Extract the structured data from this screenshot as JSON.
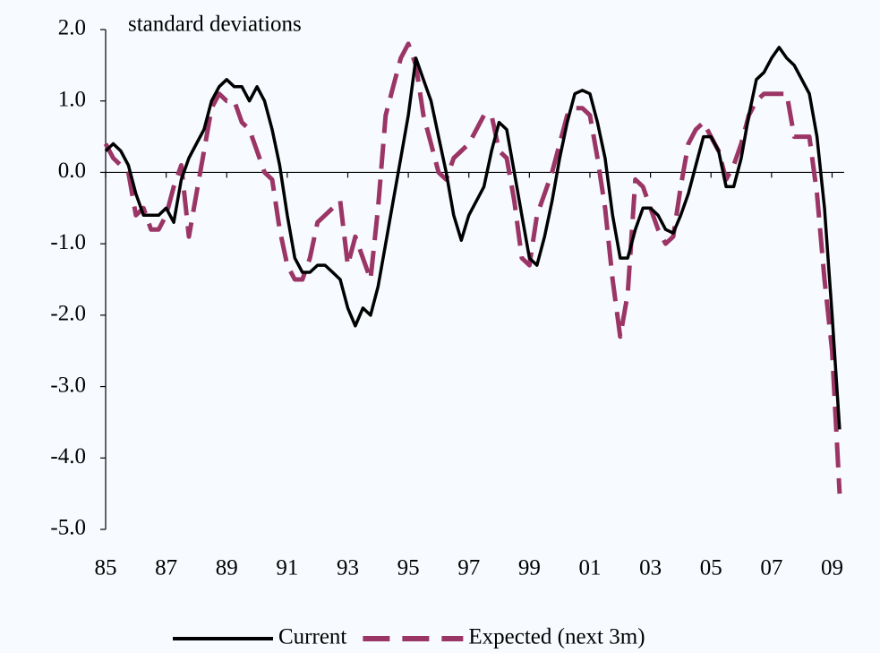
{
  "chart_data": {
    "type": "line",
    "y_label": "standard deviations",
    "x": [
      1985,
      1985.25,
      1985.5,
      1985.75,
      1986,
      1986.25,
      1986.5,
      1986.75,
      1987,
      1987.25,
      1987.5,
      1987.75,
      1988,
      1988.25,
      1988.5,
      1988.75,
      1989,
      1989.25,
      1989.5,
      1989.75,
      1990,
      1990.25,
      1990.5,
      1990.75,
      1991,
      1991.25,
      1991.5,
      1991.75,
      1992,
      1992.25,
      1992.5,
      1992.75,
      1993,
      1993.25,
      1993.5,
      1993.75,
      1994,
      1994.25,
      1994.5,
      1994.75,
      1995,
      1995.25,
      1995.5,
      1995.75,
      1996,
      1996.25,
      1996.5,
      1996.75,
      1997,
      1997.25,
      1997.5,
      1997.75,
      1998,
      1998.25,
      1998.5,
      1998.75,
      1999,
      1999.25,
      1999.5,
      1999.75,
      2000,
      2000.25,
      2000.5,
      2000.75,
      2001,
      2001.25,
      2001.5,
      2001.75,
      2002,
      2002.25,
      2002.5,
      2002.75,
      2003,
      2003.25,
      2003.5,
      2003.75,
      2004,
      2004.25,
      2004.5,
      2004.75,
      2005,
      2005.25,
      2005.5,
      2005.75,
      2006,
      2006.25,
      2006.5,
      2006.75,
      2007,
      2007.25,
      2007.5,
      2007.75,
      2008,
      2008.25,
      2008.5,
      2008.75,
      2009,
      2009.25
    ],
    "series": [
      {
        "name": "Current",
        "color": "#000000",
        "dashed": false,
        "values": [
          0.3,
          0.4,
          0.3,
          0.1,
          -0.3,
          -0.6,
          -0.6,
          -0.6,
          -0.5,
          -0.7,
          -0.1,
          0.2,
          0.4,
          0.6,
          1.0,
          1.2,
          1.3,
          1.2,
          1.2,
          1.0,
          1.2,
          1.0,
          0.6,
          0.1,
          -0.6,
          -1.2,
          -1.4,
          -1.4,
          -1.3,
          -1.3,
          -1.4,
          -1.5,
          -1.9,
          -2.15,
          -1.9,
          -2.0,
          -1.6,
          -1.0,
          -0.4,
          0.2,
          0.8,
          1.6,
          1.3,
          1.0,
          0.5,
          0.0,
          -0.6,
          -0.95,
          -0.6,
          -0.4,
          -0.2,
          0.3,
          0.7,
          0.6,
          0.0,
          -0.6,
          -1.2,
          -1.3,
          -0.9,
          -0.4,
          0.2,
          0.7,
          1.1,
          1.15,
          1.1,
          0.7,
          0.2,
          -0.6,
          -1.2,
          -1.2,
          -0.8,
          -0.5,
          -0.5,
          -0.6,
          -0.8,
          -0.85,
          -0.6,
          -0.3,
          0.1,
          0.5,
          0.5,
          0.3,
          -0.2,
          -0.2,
          0.2,
          0.8,
          1.3,
          1.4,
          1.6,
          1.75,
          1.6,
          1.5,
          1.3,
          1.1,
          0.5,
          -0.5,
          -2.0,
          -3.6
        ]
      },
      {
        "name": "Expected (next 3m)",
        "color": "#9b3566",
        "dashed": true,
        "values": [
          0.4,
          0.2,
          0.1,
          0.0,
          -0.6,
          -0.5,
          -0.8,
          -0.8,
          -0.6,
          -0.2,
          0.1,
          -0.9,
          -0.3,
          0.3,
          0.9,
          1.1,
          1.0,
          1.0,
          0.7,
          0.6,
          0.3,
          0.0,
          -0.1,
          -0.8,
          -1.3,
          -1.5,
          -1.5,
          -1.2,
          -0.7,
          -0.6,
          -0.5,
          -0.4,
          -1.3,
          -0.9,
          -1.2,
          -1.5,
          -0.5,
          0.8,
          1.2,
          1.6,
          1.8,
          1.5,
          0.8,
          0.4,
          0.0,
          -0.1,
          0.2,
          0.3,
          0.4,
          0.6,
          0.8,
          0.8,
          0.3,
          0.2,
          -0.4,
          -1.2,
          -1.3,
          -0.6,
          -0.3,
          0.0,
          0.4,
          0.8,
          0.9,
          0.9,
          0.8,
          0.2,
          -0.5,
          -1.5,
          -2.3,
          -1.7,
          -0.1,
          -0.2,
          -0.5,
          -0.8,
          -1.0,
          -0.9,
          -0.2,
          0.4,
          0.6,
          0.7,
          0.5,
          0.3,
          -0.1,
          0.1,
          0.4,
          0.8,
          1.0,
          1.1,
          1.1,
          1.1,
          1.1,
          0.5,
          0.5,
          0.5,
          -0.3,
          -1.5,
          -2.5,
          -4.5
        ]
      }
    ],
    "xlim": [
      1985,
      2009.4
    ],
    "xticks": [
      {
        "value": 1985,
        "label": "85"
      },
      {
        "value": 1987,
        "label": "87"
      },
      {
        "value": 1989,
        "label": "89"
      },
      {
        "value": 1991,
        "label": "91"
      },
      {
        "value": 1993,
        "label": "93"
      },
      {
        "value": 1995,
        "label": "95"
      },
      {
        "value": 1997,
        "label": "97"
      },
      {
        "value": 1999,
        "label": "99"
      },
      {
        "value": 2001,
        "label": "01"
      },
      {
        "value": 2003,
        "label": "03"
      },
      {
        "value": 2005,
        "label": "05"
      },
      {
        "value": 2007,
        "label": "07"
      },
      {
        "value": 2009,
        "label": "09"
      }
    ],
    "ylim": [
      -5,
      2
    ],
    "yticks": [
      {
        "value": -5,
        "label": "-5.0"
      },
      {
        "value": -4,
        "label": "-4.0"
      },
      {
        "value": -3,
        "label": "-3.0"
      },
      {
        "value": -2,
        "label": "-2.0"
      },
      {
        "value": -1,
        "label": "-1.0"
      },
      {
        "value": 0,
        "label": "0.0"
      },
      {
        "value": 1,
        "label": "1.0"
      },
      {
        "value": 2,
        "label": "2.0"
      }
    ],
    "grid": false,
    "legend": "bottom"
  }
}
